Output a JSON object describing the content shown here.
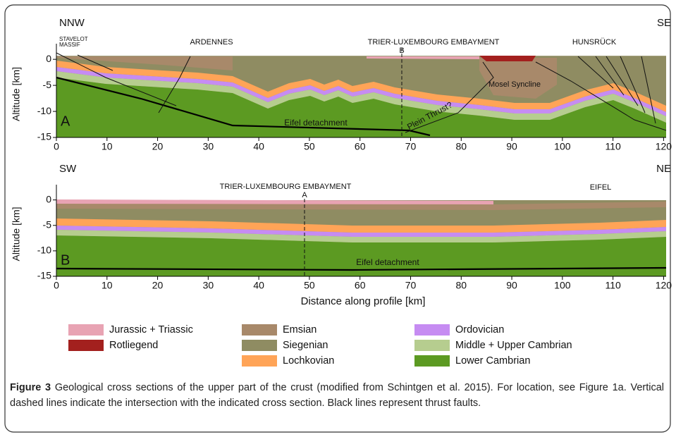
{
  "figure": {
    "panels": [
      {
        "label": "A",
        "left_direction": "NNW",
        "right_direction": "SE",
        "massif": [
          "STAVELOT",
          "MASSIF"
        ],
        "annotations": [
          "ARDENNES",
          "TRIER-LUXEMBOURG EMBAYMENT",
          "B",
          "HUNSRÜCK",
          "Mosel Syncline",
          "Plein Thrust?",
          "Eifel detachment"
        ],
        "y_label": "Altitude [km]",
        "yticks": [
          0,
          -5,
          -10,
          -15
        ],
        "ylim": [
          -15,
          3
        ],
        "xticks": [
          0,
          10,
          20,
          30,
          40,
          50,
          60,
          70,
          80,
          90,
          100,
          110,
          120
        ],
        "xlim": [
          0,
          120.5
        ]
      },
      {
        "label": "B",
        "left_direction": "SW",
        "right_direction": "NE",
        "annotations": [
          "TRIER-LUXEMBOURG EMBAYMENT",
          "A",
          "EIFEL",
          "Eifel detachment"
        ],
        "y_label": "Altitude [km]",
        "yticks": [
          0,
          -5,
          -10,
          -15
        ],
        "ylim": [
          -15,
          3
        ],
        "xticks": [
          0,
          10,
          20,
          30,
          40,
          50,
          60,
          70,
          80,
          90,
          100,
          110,
          120
        ],
        "xlim": [
          0,
          120.5
        ],
        "x_label": "Distance along profile [km]"
      }
    ],
    "legend": [
      {
        "name": "Jurassic + Triassic",
        "color": "#e8a3b3"
      },
      {
        "name": "Rotliegend",
        "color": "#a3201e"
      },
      {
        "name": "Emsian",
        "color": "#a8896a"
      },
      {
        "name": "Siegenian",
        "color": "#8f8c62"
      },
      {
        "name": "Lochkovian",
        "color": "#ffa457"
      },
      {
        "name": "Ordovician",
        "color": "#c68cf2"
      },
      {
        "name": "Middle + Upper Cambrian",
        "color": "#b6cd8f"
      },
      {
        "name": "Lower Cambrian",
        "color": "#5c9a22"
      }
    ],
    "caption": {
      "label": "Figure 3",
      "text": "Geological cross sections of the upper part of the crust (modified from Schintgen et al. 2015). For location, see Figure 1a. Vertical dashed lines indicate the intersection with the indicated cross section. Black lines represent thrust faults."
    }
  }
}
